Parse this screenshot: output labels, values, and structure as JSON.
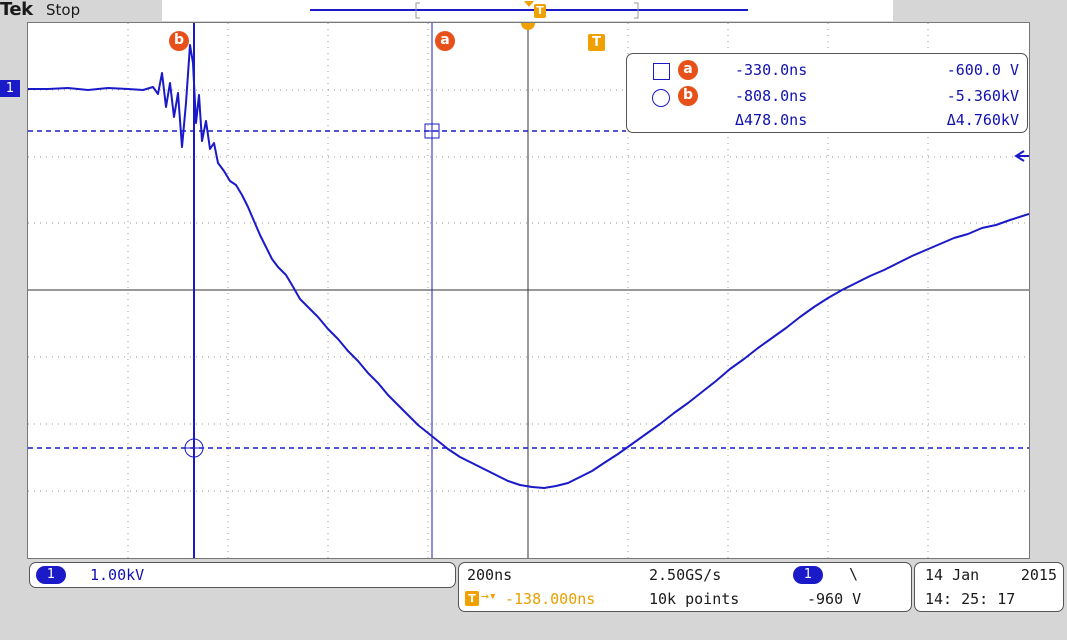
{
  "header": {
    "brand": "Tek",
    "status": "Stop"
  },
  "channel": {
    "number": "1",
    "scale": "1.00kV",
    "color": "#1a1ac8"
  },
  "trigger": {
    "badge_label": "T",
    "offset": "-138.000ns",
    "level": "-960 V",
    "slope_symbol": "\\"
  },
  "timebase": {
    "per_div": "200ns",
    "sample_rate": "2.50GS/s",
    "record_length": "10k points"
  },
  "datetime": {
    "date_day": "14 Jan",
    "year": "2015",
    "time": "14: 25: 17"
  },
  "cursors": {
    "a": {
      "label": "a",
      "time": "-330.0ns",
      "value": "-600.0 V"
    },
    "b": {
      "label": "b",
      "time": "-808.0ns",
      "value": "-5.360kV"
    },
    "delta": {
      "time": "Δ478.0ns",
      "value": "Δ4.760kV"
    }
  },
  "colors": {
    "trace": "#1a1ac8",
    "accent": "#e8a000",
    "cursor_tag": "#e8501a"
  },
  "icons": {
    "square_readout": "square-icon",
    "circle_readout": "circle-icon",
    "level_arrow": "left-arrow-icon"
  }
}
